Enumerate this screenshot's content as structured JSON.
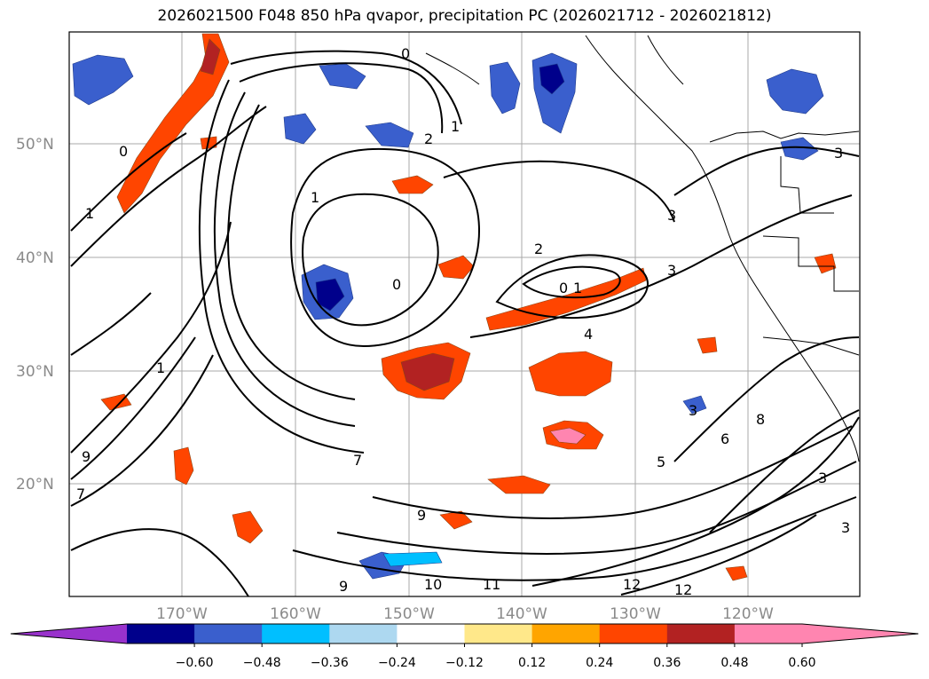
{
  "title": "2026021500 F048 850 hPa qvapor, precipitation PC (2026021712 - 2026021812)",
  "map": {
    "lat_labels": [
      "50°N",
      "40°N",
      "30°N",
      "20°N"
    ],
    "lon_labels": [
      "170°W",
      "160°W",
      "150°W",
      "140°W",
      "130°W",
      "120°W"
    ],
    "contour_labels": [
      "0",
      "1",
      "2",
      "1",
      "0",
      "2",
      "3",
      "0",
      "1",
      "4",
      "3",
      "6",
      "8",
      "9",
      "7",
      "10",
      "9",
      "11",
      "12",
      "12",
      "3",
      "3",
      "9",
      "7",
      "3",
      "1",
      "0",
      "5",
      "3",
      "1"
    ]
  },
  "colorbar": {
    "ticks": [
      "−0.60",
      "−0.48",
      "−0.36",
      "−0.24",
      "−0.12",
      "0.12",
      "0.24",
      "0.36",
      "0.48",
      "0.60"
    ],
    "colors": {
      "under": "#9932cc",
      "bins": [
        "#00008b",
        "#3a5fcd",
        "#00bfff",
        "#add8f0",
        "#ffffff",
        "#ffe88a",
        "#ffa500",
        "#ff4500",
        "#b22222",
        "#ff85b0"
      ],
      "over": "#ff85b0"
    }
  }
}
